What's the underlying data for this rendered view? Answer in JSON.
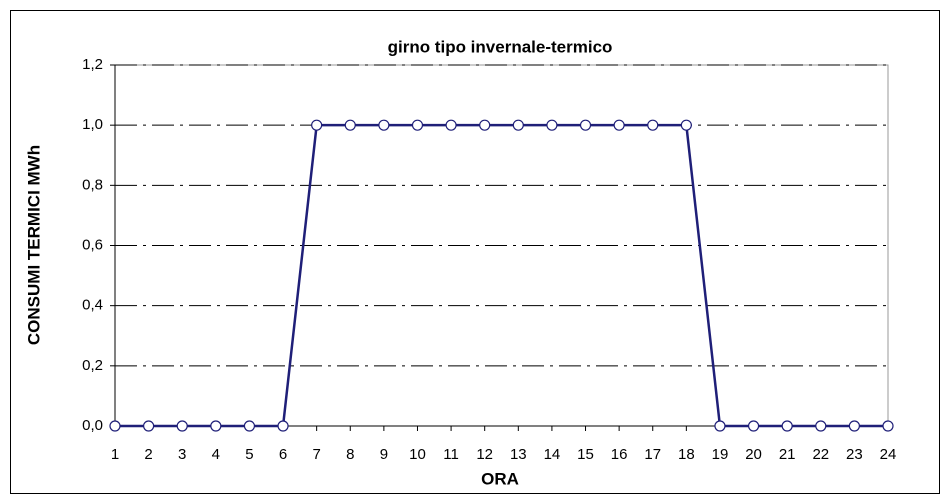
{
  "chart_data": {
    "type": "line",
    "title": "girno tipo invernale-termico",
    "xlabel": "ORA",
    "ylabel": "CONSUMI TERMICI MWh",
    "x": [
      1,
      2,
      3,
      4,
      5,
      6,
      7,
      8,
      9,
      10,
      11,
      12,
      13,
      14,
      15,
      16,
      17,
      18,
      19,
      20,
      21,
      22,
      23,
      24
    ],
    "series": [
      {
        "color": "#1f1f78",
        "values": [
          0,
          0,
          0,
          0,
          0,
          0,
          1,
          1,
          1,
          1,
          1,
          1,
          1,
          1,
          1,
          1,
          1,
          1,
          0,
          0,
          0,
          0,
          0,
          0
        ]
      }
    ],
    "xlim": [
      1,
      24
    ],
    "xticks": [
      1,
      2,
      3,
      4,
      5,
      6,
      7,
      8,
      9,
      10,
      11,
      12,
      13,
      14,
      15,
      16,
      17,
      18,
      19,
      20,
      21,
      22,
      23,
      24
    ],
    "ylim": [
      0,
      1.2
    ],
    "yticks": [
      {
        "value": 0,
        "label": "0,0"
      },
      {
        "value": 0.2,
        "label": "0,2"
      },
      {
        "value": 0.4,
        "label": "0,4"
      },
      {
        "value": 0.6,
        "label": "0,6"
      },
      {
        "value": 0.8,
        "label": "0,8"
      },
      {
        "value": 1,
        "label": "1,0"
      },
      {
        "value": 1.2,
        "label": "1,2"
      }
    ],
    "grid": true
  }
}
